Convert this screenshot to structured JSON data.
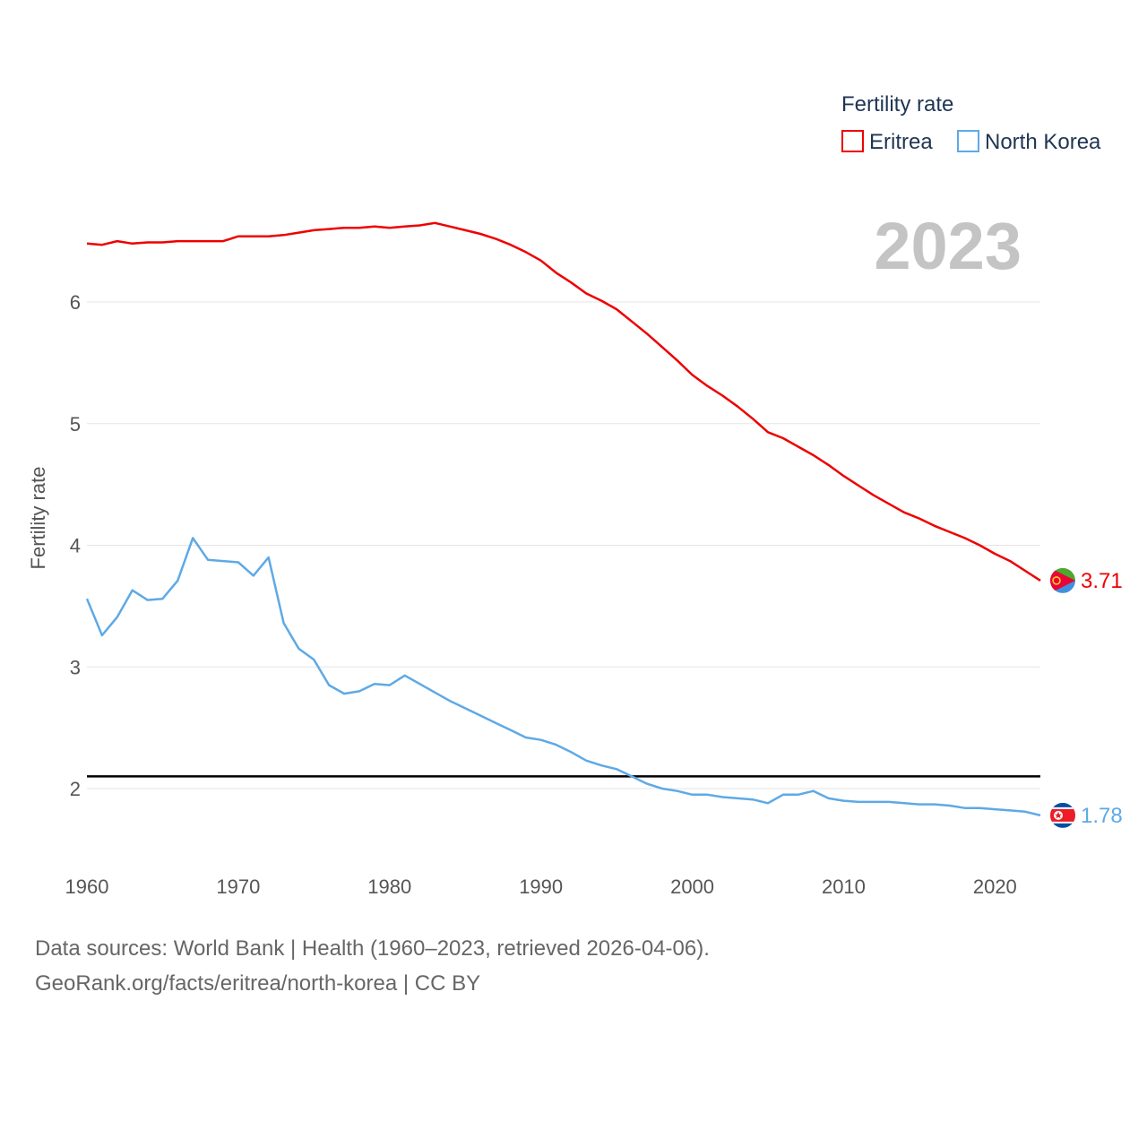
{
  "chart_data": {
    "type": "line",
    "legend_title": "Fertility rate",
    "year_label": "2023",
    "ylabel": "Fertility rate",
    "xlim": [
      1960,
      2023
    ],
    "ylim": [
      1.45,
      7.1
    ],
    "x_ticks": [
      1960,
      1970,
      1980,
      1990,
      2000,
      2010,
      2020
    ],
    "y_ticks": [
      2,
      3,
      4,
      5,
      6
    ],
    "reference_line": 2.1,
    "x": [
      1960,
      1961,
      1962,
      1963,
      1964,
      1965,
      1966,
      1967,
      1968,
      1969,
      1970,
      1971,
      1972,
      1973,
      1974,
      1975,
      1976,
      1977,
      1978,
      1979,
      1980,
      1981,
      1982,
      1983,
      1984,
      1985,
      1986,
      1987,
      1988,
      1989,
      1990,
      1991,
      1992,
      1993,
      1994,
      1995,
      1996,
      1997,
      1998,
      1999,
      2000,
      2001,
      2002,
      2003,
      2004,
      2005,
      2006,
      2007,
      2008,
      2009,
      2010,
      2011,
      2012,
      2013,
      2014,
      2015,
      2016,
      2017,
      2018,
      2019,
      2020,
      2021,
      2022,
      2023
    ],
    "series": [
      {
        "name": "Eritrea",
        "color": "#ee0000",
        "end_label": "3.71",
        "flag": "eritrea-flag-icon",
        "values": [
          6.48,
          6.47,
          6.5,
          6.48,
          6.49,
          6.49,
          6.5,
          6.5,
          6.5,
          6.5,
          6.54,
          6.54,
          6.54,
          6.55,
          6.57,
          6.59,
          6.6,
          6.61,
          6.61,
          6.62,
          6.61,
          6.62,
          6.63,
          6.65,
          6.62,
          6.59,
          6.56,
          6.52,
          6.47,
          6.41,
          6.34,
          6.24,
          6.16,
          6.07,
          6.01,
          5.94,
          5.84,
          5.74,
          5.63,
          5.52,
          5.4,
          5.31,
          5.23,
          5.14,
          5.04,
          4.93,
          4.88,
          4.81,
          4.74,
          4.66,
          4.57,
          4.49,
          4.41,
          4.34,
          4.27,
          4.22,
          4.16,
          4.11,
          4.06,
          4.0,
          3.93,
          3.87,
          3.79,
          3.71
        ]
      },
      {
        "name": "North Korea",
        "color": "#5ea9e6",
        "end_label": "1.78",
        "flag": "north-korea-flag-icon",
        "values": [
          3.56,
          3.26,
          3.41,
          3.63,
          3.55,
          3.56,
          3.71,
          4.06,
          3.88,
          3.87,
          3.86,
          3.75,
          3.9,
          3.36,
          3.15,
          3.06,
          2.85,
          2.78,
          2.8,
          2.86,
          2.85,
          2.93,
          2.86,
          2.79,
          2.72,
          2.66,
          2.6,
          2.54,
          2.48,
          2.42,
          2.4,
          2.36,
          2.3,
          2.23,
          2.19,
          2.16,
          2.1,
          2.04,
          2.0,
          1.98,
          1.95,
          1.95,
          1.93,
          1.92,
          1.91,
          1.88,
          1.95,
          1.95,
          1.98,
          1.92,
          1.9,
          1.89,
          1.89,
          1.89,
          1.88,
          1.87,
          1.87,
          1.86,
          1.84,
          1.84,
          1.83,
          1.82,
          1.81,
          1.78
        ]
      }
    ]
  },
  "footer": {
    "sources": "Data sources: World Bank | Health (1960–2023, retrieved 2026-04-06).",
    "credit": "GeoRank.org/facts/eritrea/north-korea | CC BY"
  }
}
